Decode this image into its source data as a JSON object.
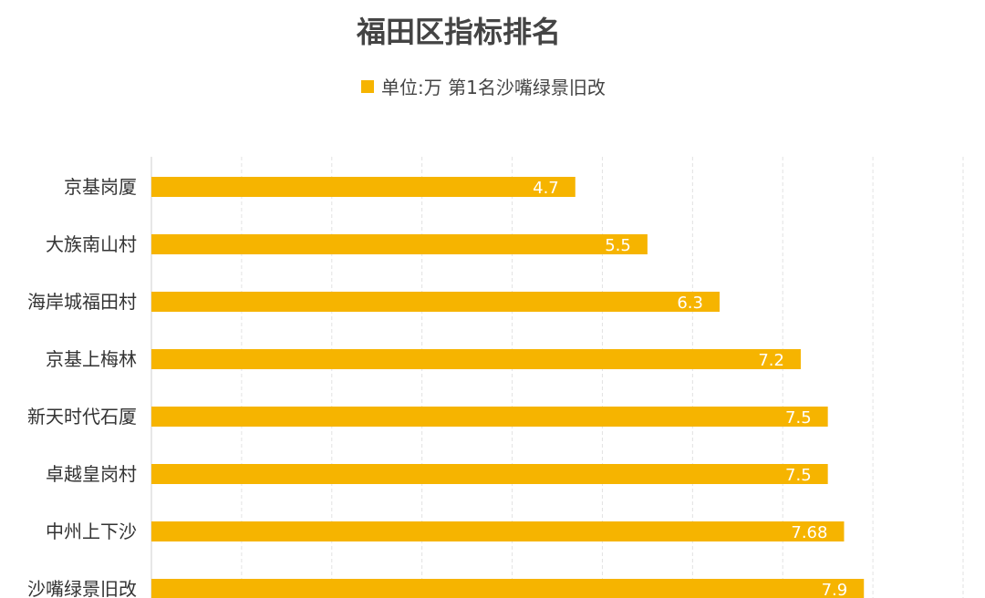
{
  "chart_data": {
    "type": "bar",
    "orientation": "horizontal",
    "title": "福田区指标排名",
    "legend": {
      "label": "单位:万 第1名沙嘴绿景旧改",
      "position": "top",
      "color": "#F6B400"
    },
    "categories": [
      "京基岗厦",
      "大族南山村",
      "海岸城福田村",
      "京基上梅林",
      "新天时代石厦",
      "卓越皇岗村",
      "中州上下沙",
      "沙嘴绿景旧改"
    ],
    "values": [
      4.7,
      5.5,
      6.3,
      7.2,
      7.5,
      7.5,
      7.68,
      7.9
    ],
    "value_labels": [
      "4.7",
      "5.5",
      "6.3",
      "7.2",
      "7.5",
      "7.5",
      "7.68",
      "7.9"
    ],
    "bar_color": "#F6B400",
    "xlim": [
      0,
      9
    ],
    "grid": true
  }
}
